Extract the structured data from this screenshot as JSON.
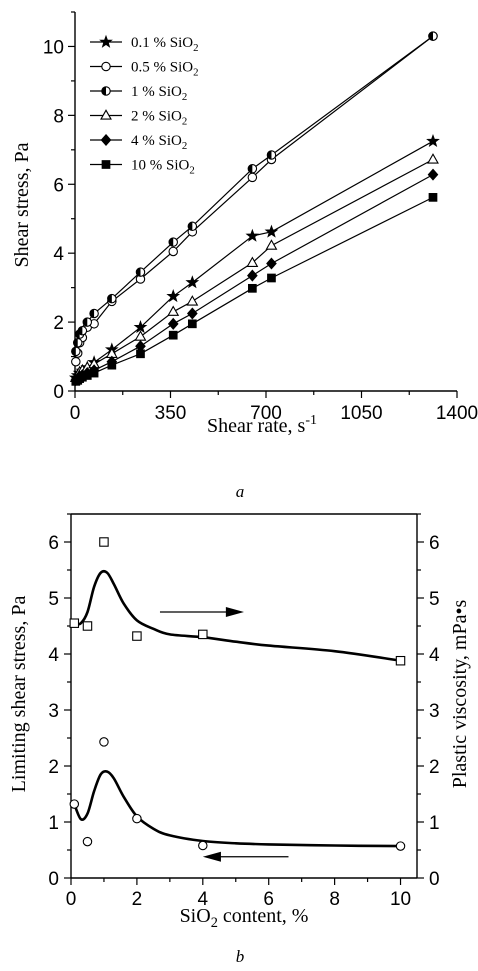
{
  "chart_data": [
    {
      "type": "line",
      "caption": "a",
      "xlabel": "Shear rate, s",
      "xlabel_sup": "-1",
      "ylabel": "Shear stress, Pa",
      "xlim": [
        0,
        1400
      ],
      "ylim": [
        0,
        11
      ],
      "xticks": [
        "0",
        "350",
        "700",
        "1050",
        "1400"
      ],
      "yticks": [
        "0",
        "2",
        "4",
        "6",
        "8",
        "10"
      ],
      "x": [
        3,
        10,
        17,
        27,
        45,
        70,
        135,
        240,
        360,
        430,
        650,
        720,
        1312
      ],
      "series": [
        {
          "name": "0.1 % SiO",
          "sub": "2",
          "marker": "star",
          "values": [
            0.38,
            0.45,
            0.52,
            0.58,
            0.68,
            0.83,
            1.2,
            1.85,
            2.75,
            3.15,
            4.5,
            4.62,
            7.25
          ]
        },
        {
          "name": "0.5 % SiO",
          "sub": "2",
          "marker": "circle-open",
          "values": [
            0.85,
            1.1,
            1.4,
            1.55,
            1.85,
            1.95,
            2.6,
            3.25,
            4.05,
            4.62,
            6.2,
            6.72,
            10.3
          ]
        },
        {
          "name": "1 % SiO",
          "sub": "2",
          "marker": "circle-half",
          "values": [
            1.15,
            1.4,
            1.65,
            1.75,
            2.0,
            2.25,
            2.68,
            3.45,
            4.32,
            4.78,
            6.45,
            6.85,
            10.3
          ]
        },
        {
          "name": "2 % SiO",
          "sub": "2",
          "marker": "triangle-open",
          "values": [
            0.38,
            0.46,
            0.55,
            0.6,
            0.68,
            0.78,
            1.08,
            1.58,
            2.3,
            2.6,
            3.72,
            4.22,
            6.72
          ]
        },
        {
          "name": "4 % SiO",
          "sub": "2",
          "marker": "diamond",
          "values": [
            0.32,
            0.36,
            0.42,
            0.46,
            0.52,
            0.6,
            0.85,
            1.3,
            1.95,
            2.25,
            3.35,
            3.7,
            6.28
          ]
        },
        {
          "name": "10 % SiO",
          "sub": "2",
          "marker": "square",
          "values": [
            0.28,
            0.31,
            0.36,
            0.4,
            0.45,
            0.52,
            0.75,
            1.08,
            1.62,
            1.95,
            2.98,
            3.28,
            5.62
          ]
        }
      ]
    },
    {
      "type": "scatter",
      "caption": "b",
      "xlabel": "SiO",
      "xlabel_sub": "2",
      "xlabel_rest": " content, %",
      "ylabel_left": "Limiting shear stress, Pa",
      "ylabel_right": "Plastic viscosity, mPa•s",
      "xlim": [
        0,
        10.5
      ],
      "ylim_left": [
        0,
        6.5
      ],
      "ylim_right": [
        0,
        6.5
      ],
      "xticks": [
        "0",
        "2",
        "4",
        "6",
        "8",
        "10"
      ],
      "yticks_left": [
        "0",
        "1",
        "2",
        "3",
        "4",
        "5",
        "6"
      ],
      "yticks_right": [
        "0",
        "1",
        "2",
        "3",
        "4",
        "5",
        "6"
      ],
      "series": [
        {
          "name": "Limiting shear stress",
          "axis": "left",
          "marker": "circle-open",
          "x": [
            0.1,
            0.5,
            1,
            2,
            4,
            10
          ],
          "values": [
            1.32,
            0.65,
            2.43,
            1.06,
            0.58,
            0.57
          ],
          "fit_x": [
            0.1,
            0.3,
            0.5,
            0.7,
            0.9,
            1.1,
            1.3,
            1.6,
            2.0,
            2.5,
            3.0,
            4.0,
            5.0,
            6.0,
            8.0,
            10.0
          ],
          "fit_y": [
            1.32,
            1.05,
            1.15,
            1.55,
            1.85,
            1.9,
            1.78,
            1.45,
            1.1,
            0.88,
            0.76,
            0.66,
            0.62,
            0.6,
            0.58,
            0.57
          ]
        },
        {
          "name": "Plastic viscosity",
          "axis": "right",
          "marker": "square-open",
          "x": [
            0.1,
            0.5,
            1,
            2,
            4,
            10
          ],
          "values": [
            4.55,
            4.5,
            6.0,
            4.32,
            4.35,
            3.88
          ],
          "fit_x": [
            0.1,
            0.3,
            0.5,
            0.7,
            0.9,
            1.1,
            1.3,
            1.6,
            2.0,
            2.5,
            3.0,
            4.0,
            5.0,
            6.0,
            8.0,
            10.0
          ],
          "fit_y": [
            4.52,
            4.55,
            4.75,
            5.2,
            5.45,
            5.45,
            5.25,
            4.9,
            4.6,
            4.45,
            4.35,
            4.3,
            4.22,
            4.15,
            4.05,
            3.88
          ]
        }
      ]
    }
  ]
}
